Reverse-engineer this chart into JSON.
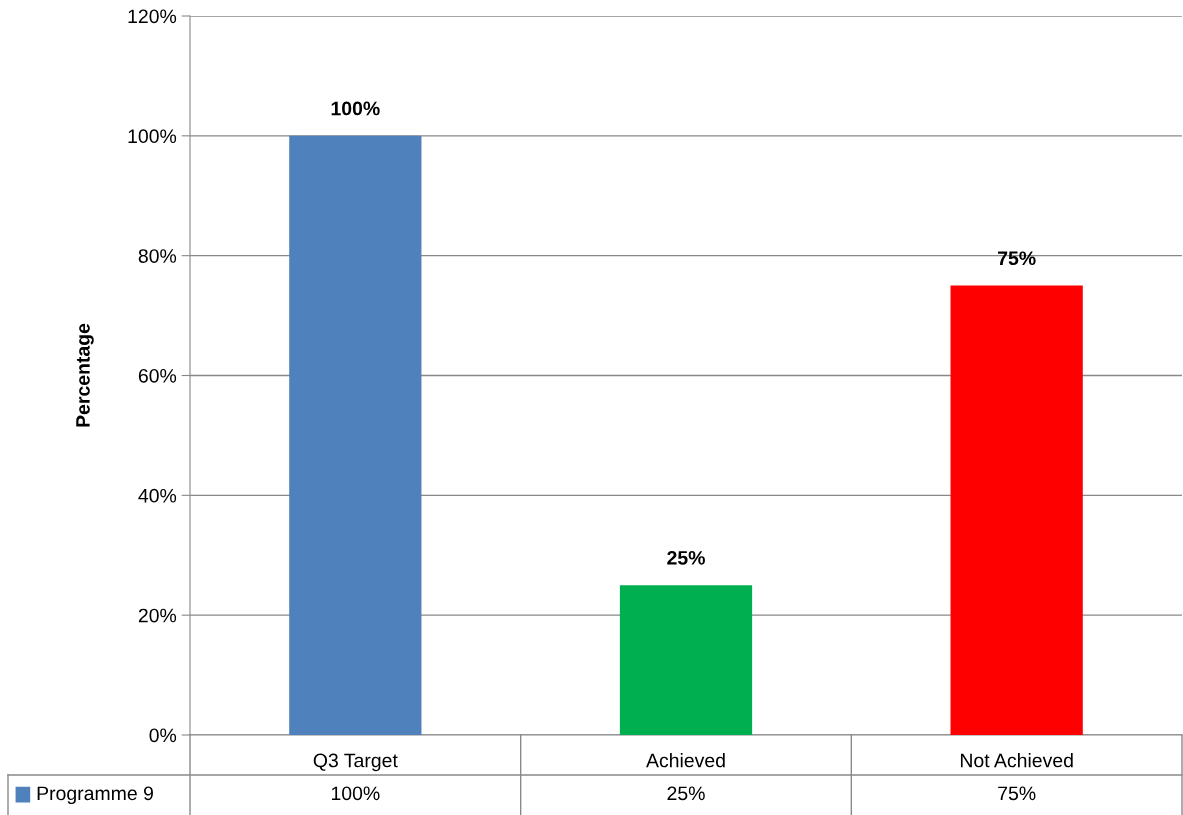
{
  "chart_data": {
    "type": "bar",
    "ylabel": "Percentage",
    "categories": [
      "Q3 Target",
      "Achieved",
      "Not Achieved"
    ],
    "series": [
      {
        "name": "Programme 9",
        "color": "#4f81bd",
        "colors": [
          "#4f81bd",
          "#00b050",
          "#ff0000"
        ],
        "values": [
          100,
          25,
          75
        ],
        "value_labels": [
          "100%",
          "25%",
          "75%"
        ]
      }
    ],
    "ylim": [
      0,
      120
    ],
    "yticks": [
      {
        "value": 0,
        "label": "0%"
      },
      {
        "value": 20,
        "label": "20%"
      },
      {
        "value": 40,
        "label": "40%"
      },
      {
        "value": 60,
        "label": "60%"
      },
      {
        "value": 80,
        "label": "80%"
      },
      {
        "value": 100,
        "label": "100%"
      },
      {
        "value": 120,
        "label": "120%"
      }
    ],
    "grid": "y",
    "legend": "bottom"
  }
}
